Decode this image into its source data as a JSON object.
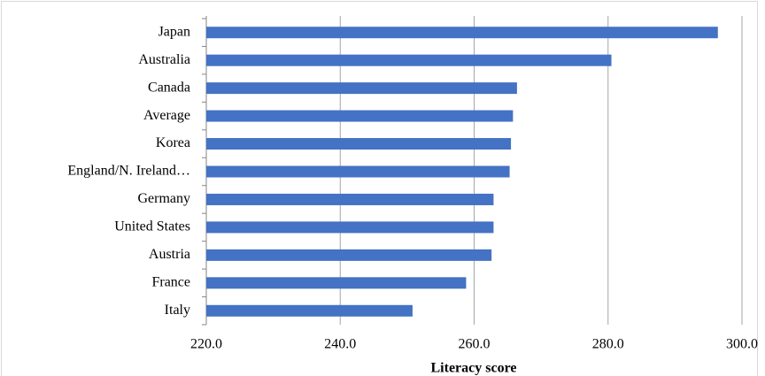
{
  "chart_data": {
    "type": "hbar",
    "x_label": "Literacy score",
    "categories": [
      "Japan",
      "Australia",
      "Canada",
      "Average",
      "Korea",
      "England/N. Ireland…",
      "Germany",
      "United States",
      "Austria",
      "France",
      "Italy"
    ],
    "values": [
      296.4,
      280.5,
      266.4,
      265.8,
      265.5,
      265.3,
      262.9,
      262.9,
      262.6,
      258.8,
      250.8
    ],
    "color": "#4472c4",
    "xlim": [
      220,
      300
    ],
    "xticks": [
      {
        "value": 220,
        "label": "220.0"
      },
      {
        "value": 240,
        "label": "240.0"
      },
      {
        "value": 260,
        "label": "260.0"
      },
      {
        "value": 280,
        "label": "280.0"
      },
      {
        "value": 300,
        "label": "300.0"
      }
    ],
    "grid": true
  }
}
